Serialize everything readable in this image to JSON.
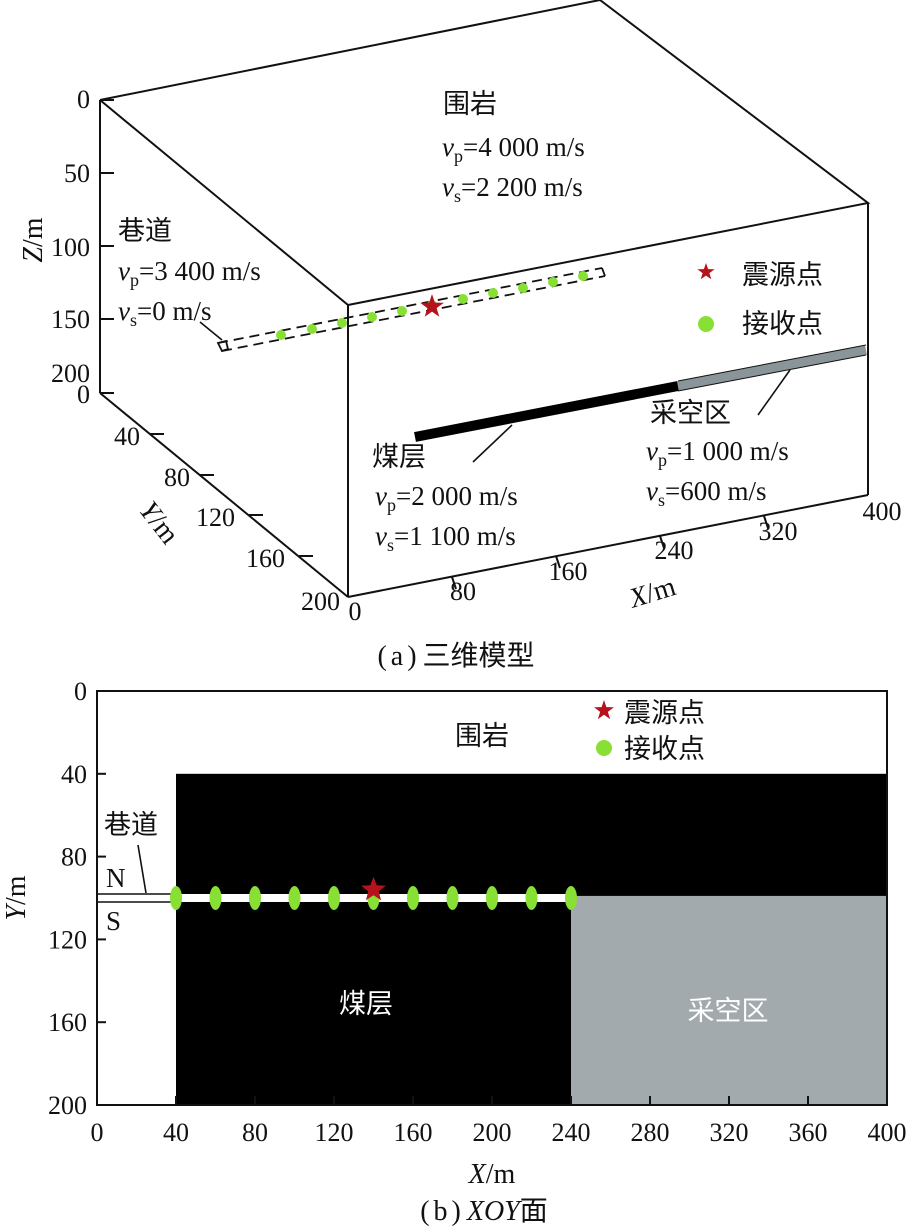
{
  "panel_a": {
    "caption_letter": "a",
    "caption_text": "三维模型",
    "axes": {
      "z_label_letter": "Z",
      "z_label_unit": "/m",
      "y_label_letter": "Y",
      "y_label_unit": "/m",
      "x_label_letter": "X",
      "x_label_unit": "/m",
      "z_ticks": [
        "0",
        "50",
        "100",
        "150",
        "200"
      ],
      "y_ticks": [
        "0",
        "40",
        "80",
        "120",
        "160",
        "200"
      ],
      "x_ticks": [
        "0",
        "80",
        "160",
        "240",
        "320",
        "400"
      ]
    },
    "rock": {
      "name": "围岩",
      "vp_value": "=4 000 m/s",
      "vs_value": "=2 200 m/s"
    },
    "tunnel": {
      "name": "巷道",
      "vp_value": "=3 400 m/s",
      "vs_value": "=0 m/s"
    },
    "coal": {
      "name": "煤层",
      "vp_value": "=2 000 m/s",
      "vs_value": "=1 100 m/s"
    },
    "goaf": {
      "name": "采空区",
      "vp_value": "=1 000 m/s",
      "vs_value": "=600 m/s"
    },
    "symbols": {
      "v": "v",
      "p": "p",
      "s": "s"
    },
    "legend": {
      "source": "震源点",
      "receiver": "接收点"
    },
    "colors": {
      "source": "#b5121b",
      "receiver": "#88e034",
      "coal": "#000000",
      "goaf": "#8a9599"
    }
  },
  "panel_b": {
    "caption_letter": "b",
    "caption_italic": "XOY",
    "caption_text": "面",
    "x_label_letter": "X",
    "x_label_unit": "/m",
    "y_label_letter": "Y",
    "y_label_unit": "/m",
    "legend": {
      "source": "震源点",
      "receiver": "接收点"
    },
    "labels": {
      "rock": "围岩",
      "tunnel": "巷道",
      "coal": "煤层",
      "goaf": "采空区",
      "north": "N",
      "south": "S"
    },
    "colors": {
      "coal": "#000000",
      "goaf": "#a2aaad",
      "source": "#b5121b",
      "receiver": "#88e034",
      "tunnel": "#ffffff"
    },
    "chart_data": {
      "type": "map",
      "xlim": [
        0,
        400
      ],
      "ylim": [
        0,
        200
      ],
      "y_inverted": true,
      "x_ticks": [
        0,
        40,
        80,
        120,
        160,
        200,
        240,
        280,
        320,
        360,
        400
      ],
      "y_ticks": [
        0,
        40,
        80,
        120,
        160,
        200
      ],
      "regions": [
        {
          "name": "煤层",
          "x": [
            40,
            240
          ],
          "y": [
            40,
            200
          ]
        },
        {
          "name": "采空区",
          "x": [
            240,
            400
          ],
          "y": [
            99,
            200
          ]
        },
        {
          "name": "煤层",
          "x": [
            240,
            400
          ],
          "y": [
            40,
            99
          ]
        }
      ],
      "tunnel": {
        "x": [
          0,
          240
        ],
        "y": 100
      },
      "source": {
        "x": 140,
        "y": 96
      },
      "receivers": [
        {
          "x": 40,
          "y": 100
        },
        {
          "x": 60,
          "y": 100
        },
        {
          "x": 80,
          "y": 100
        },
        {
          "x": 100,
          "y": 100
        },
        {
          "x": 120,
          "y": 100
        },
        {
          "x": 140,
          "y": 100
        },
        {
          "x": 160,
          "y": 100
        },
        {
          "x": 180,
          "y": 100
        },
        {
          "x": 200,
          "y": 100
        },
        {
          "x": 220,
          "y": 100
        },
        {
          "x": 240,
          "y": 100
        }
      ]
    }
  }
}
